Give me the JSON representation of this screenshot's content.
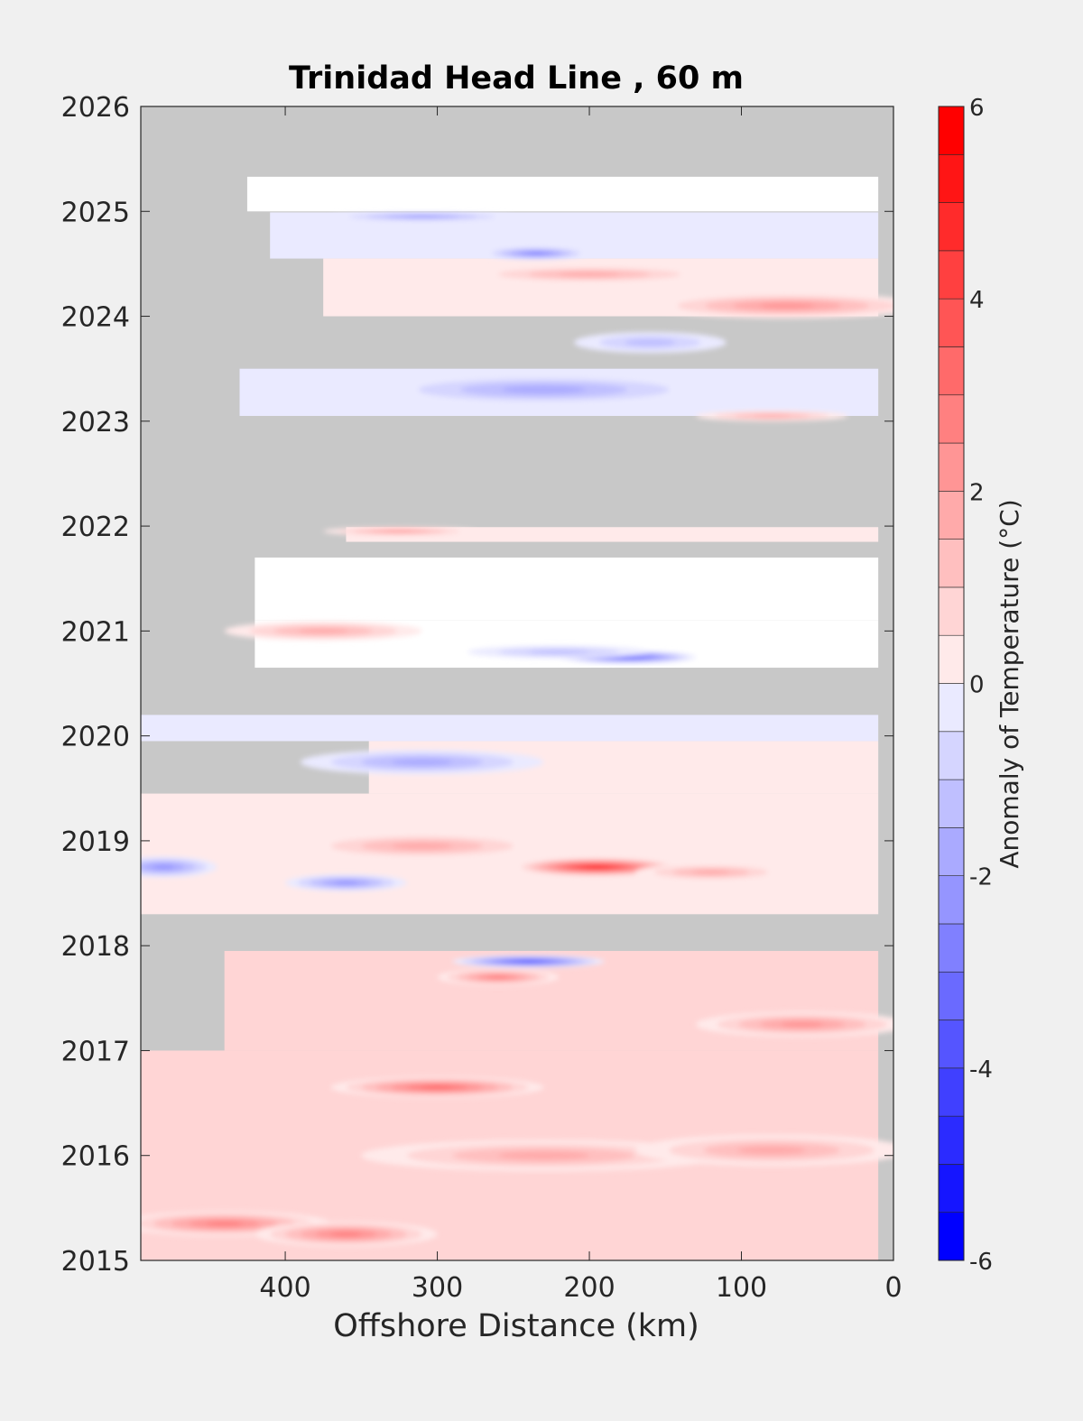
{
  "chart_data": {
    "type": "heatmap",
    "title": "Trinidad Head Line , 60 m",
    "xlabel": "Offshore Distance (km)",
    "ylabel": "",
    "xlim": [
      495,
      0
    ],
    "ylim": [
      2015,
      2026
    ],
    "x_ticks": [
      400,
      300,
      200,
      100,
      0
    ],
    "x_tick_labels": [
      "400",
      "300",
      "200",
      "100",
      "0"
    ],
    "y_ticks": [
      2015,
      2016,
      2017,
      2018,
      2019,
      2020,
      2021,
      2022,
      2023,
      2024,
      2025,
      2026
    ],
    "y_tick_labels": [
      "2015",
      "2016",
      "2017",
      "2018",
      "2019",
      "2020",
      "2021",
      "2022",
      "2023",
      "2024",
      "2025",
      "2026"
    ],
    "colorbar": {
      "label": "Anomaly of Temperature (°C)",
      "range": [
        -6,
        6
      ],
      "step": 0.5,
      "ticks": [
        -6,
        -4,
        -2,
        0,
        2,
        4,
        6
      ],
      "tick_labels": [
        "-6",
        "-4",
        "-2",
        "0",
        "2",
        "4",
        "6"
      ],
      "low_color": "#0000ff",
      "mid_color": "#ffffff",
      "high_color": "#ff0000"
    },
    "nodata_color": "#c8c8c8",
    "grid": false,
    "data_rows": [
      {
        "t": [
          2025.0,
          2025.33
        ],
        "x": [
          425,
          10
        ],
        "base": 0.2
      },
      {
        "t": [
          2024.55,
          2024.99
        ],
        "x": [
          410,
          10
        ],
        "base": -0.5
      },
      {
        "t": [
          2024.0,
          2024.55
        ],
        "x": [
          375,
          10
        ],
        "base": 0.5
      },
      {
        "t": [
          2023.05,
          2023.5
        ],
        "x": [
          430,
          10
        ],
        "base": -0.6
      },
      {
        "t": [
          2021.85,
          2021.99
        ],
        "x": [
          360,
          10
        ],
        "base": 0.4
      },
      {
        "t": [
          2021.1,
          2021.7
        ],
        "x": [
          420,
          10
        ],
        "base": 0.2
      },
      {
        "t": [
          2020.65,
          2021.1
        ],
        "x": [
          420,
          10
        ],
        "base": -0.2
      },
      {
        "t": [
          2019.95,
          2020.2
        ],
        "x": [
          495,
          10
        ],
        "base": -0.3
      },
      {
        "t": [
          2019.45,
          2019.95
        ],
        "x": [
          345,
          10
        ],
        "base": 0.5
      },
      {
        "t": [
          2018.3,
          2019.45
        ],
        "x": [
          495,
          10
        ],
        "base": 0.7
      },
      {
        "t": [
          2017.0,
          2017.95
        ],
        "x": [
          440,
          10
        ],
        "base": 0.8
      },
      {
        "t": [
          2015.0,
          2017.0
        ],
        "x": [
          495,
          10
        ],
        "base": 1.2
      }
    ],
    "anomaly_blobs": [
      {
        "x": 195,
        "t": 2018.75,
        "value": 5.0,
        "rx": 55,
        "ry": 0.09
      },
      {
        "x": 300,
        "t": 2016.65,
        "value": 3.5,
        "rx": 70,
        "ry": 0.1
      },
      {
        "x": 440,
        "t": 2015.35,
        "value": 3.2,
        "rx": 70,
        "ry": 0.12
      },
      {
        "x": 360,
        "t": 2015.25,
        "value": 2.8,
        "rx": 60,
        "ry": 0.12
      },
      {
        "x": 230,
        "t": 2016.0,
        "value": 2.0,
        "rx": 120,
        "ry": 0.15
      },
      {
        "x": 80,
        "t": 2016.05,
        "value": 2.2,
        "rx": 90,
        "ry": 0.15
      },
      {
        "x": 60,
        "t": 2017.25,
        "value": 2.4,
        "rx": 70,
        "ry": 0.12
      },
      {
        "x": 260,
        "t": 2017.7,
        "value": 3.0,
        "rx": 40,
        "ry": 0.08
      },
      {
        "x": 240,
        "t": 2017.85,
        "value": -4.0,
        "rx": 50,
        "ry": 0.06
      },
      {
        "x": 360,
        "t": 2018.6,
        "value": -2.5,
        "rx": 40,
        "ry": 0.08
      },
      {
        "x": 480,
        "t": 2018.75,
        "value": -2.4,
        "rx": 35,
        "ry": 0.1
      },
      {
        "x": 120,
        "t": 2018.7,
        "value": 2.0,
        "rx": 50,
        "ry": 0.08
      },
      {
        "x": 310,
        "t": 2018.95,
        "value": 1.8,
        "rx": 80,
        "ry": 0.12
      },
      {
        "x": 310,
        "t": 2019.75,
        "value": -1.8,
        "rx": 80,
        "ry": 0.12
      },
      {
        "x": 175,
        "t": 2020.75,
        "value": -4.2,
        "rx": 45,
        "ry": 0.06
      },
      {
        "x": 375,
        "t": 2021.0,
        "value": 2.2,
        "rx": 65,
        "ry": 0.09
      },
      {
        "x": 220,
        "t": 2020.8,
        "value": -1.4,
        "rx": 60,
        "ry": 0.06
      },
      {
        "x": 70,
        "t": 2024.1,
        "value": 2.5,
        "rx": 90,
        "ry": 0.12
      },
      {
        "x": 200,
        "t": 2024.4,
        "value": 1.8,
        "rx": 80,
        "ry": 0.08
      },
      {
        "x": 230,
        "t": 2023.3,
        "value": -2.2,
        "rx": 110,
        "ry": 0.14
      },
      {
        "x": 310,
        "t": 2024.95,
        "value": -2.6,
        "rx": 60,
        "ry": 0.04
      },
      {
        "x": 235,
        "t": 2024.6,
        "value": -2.8,
        "rx": 35,
        "ry": 0.06
      },
      {
        "x": 160,
        "t": 2023.75,
        "value": -1.6,
        "rx": 50,
        "ry": 0.1
      },
      {
        "x": 80,
        "t": 2023.05,
        "value": 2.0,
        "rx": 50,
        "ry": 0.05
      },
      {
        "x": 325,
        "t": 2021.95,
        "value": 2.4,
        "rx": 50,
        "ry": 0.04
      }
    ]
  }
}
